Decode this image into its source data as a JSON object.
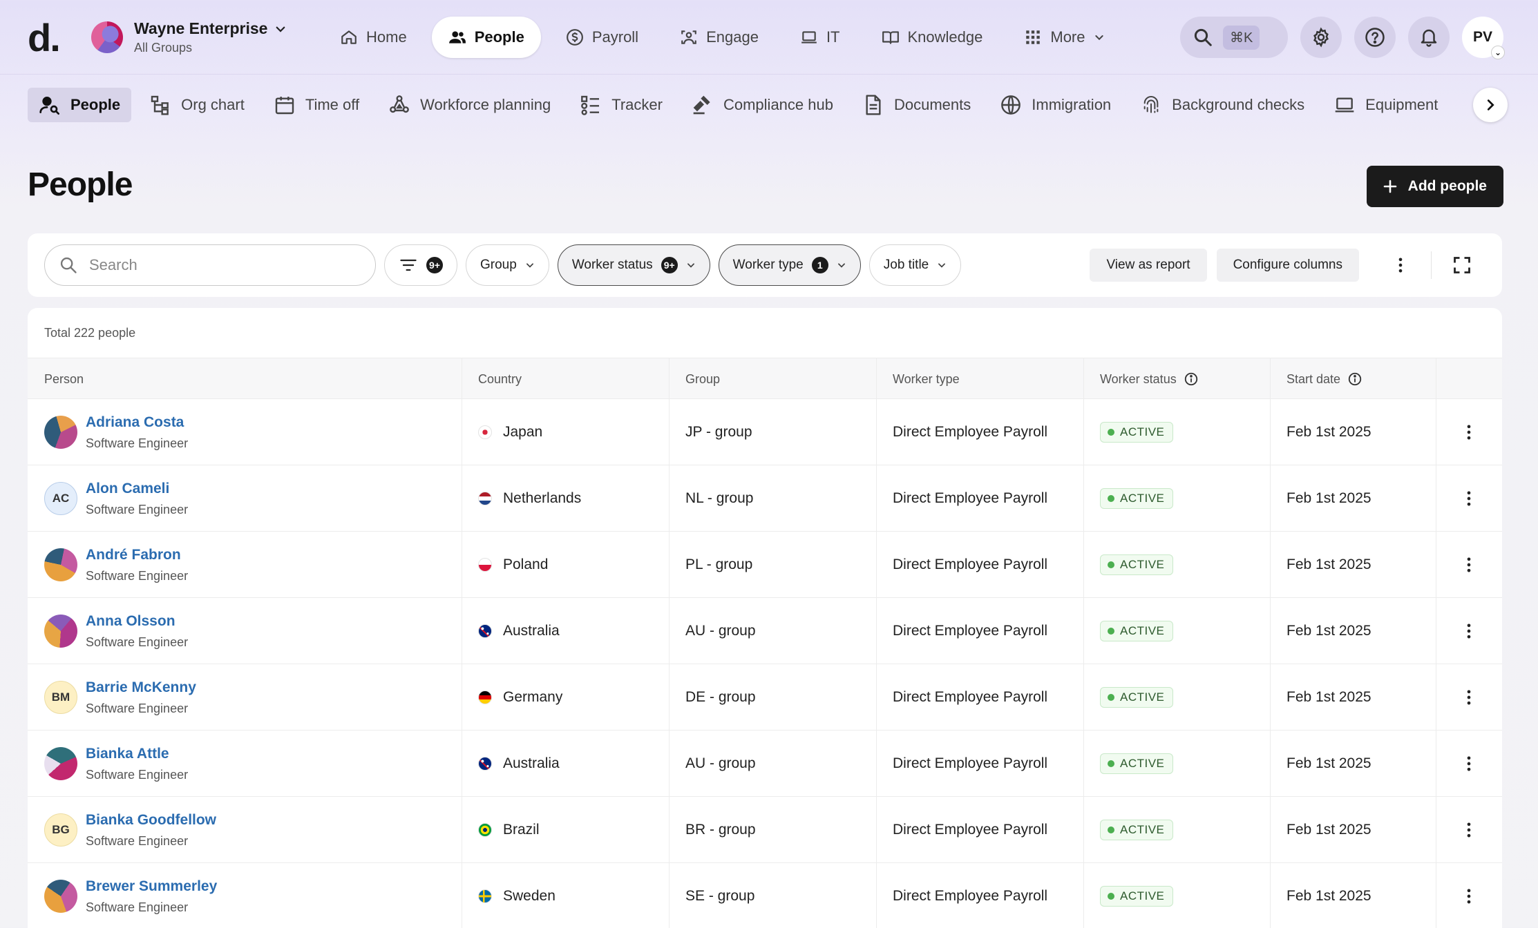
{
  "app": {
    "logo": "d."
  },
  "org": {
    "name": "Wayne Enterprise",
    "sub": "All Groups"
  },
  "topnav": [
    {
      "label": "Home",
      "icon": "home-icon"
    },
    {
      "label": "People",
      "icon": "people-icon",
      "active": true
    },
    {
      "label": "Payroll",
      "icon": "dollar-icon"
    },
    {
      "label": "Engage",
      "icon": "engage-icon"
    },
    {
      "label": "IT",
      "icon": "laptop-icon"
    },
    {
      "label": "Knowledge",
      "icon": "book-icon"
    },
    {
      "label": "More",
      "icon": "grid-icon"
    }
  ],
  "topright": {
    "shortcut": "⌘K",
    "user_initials": "PV"
  },
  "subnav": [
    {
      "label": "People",
      "icon": "person-search-icon",
      "active": true
    },
    {
      "label": "Org chart",
      "icon": "org-chart-icon"
    },
    {
      "label": "Time off",
      "icon": "calendar-icon"
    },
    {
      "label": "Workforce planning",
      "icon": "workforce-icon"
    },
    {
      "label": "Tracker",
      "icon": "tracker-icon"
    },
    {
      "label": "Compliance hub",
      "icon": "gavel-icon"
    },
    {
      "label": "Documents",
      "icon": "document-icon"
    },
    {
      "label": "Immigration",
      "icon": "globe-icon"
    },
    {
      "label": "Background checks",
      "icon": "fingerprint-icon"
    },
    {
      "label": "Equipment",
      "icon": "laptop-icon"
    }
  ],
  "page": {
    "title": "People",
    "add_label": "Add people"
  },
  "filters": {
    "search_placeholder": "Search",
    "filter_count": "9+",
    "chips": [
      {
        "label": "Group",
        "badge": "",
        "selected": false
      },
      {
        "label": "Worker status",
        "badge": "9+",
        "selected": true
      },
      {
        "label": "Worker type",
        "badge": "1",
        "selected": true
      },
      {
        "label": "Job title",
        "badge": "",
        "selected": false
      }
    ],
    "view_report": "View as report",
    "configure": "Configure columns"
  },
  "table": {
    "total": "Total 222 people",
    "columns": [
      "Person",
      "Country",
      "Group",
      "Worker type",
      "Worker status",
      "Start date"
    ],
    "rows": [
      {
        "name": "Adriana Costa",
        "title": "Software Engineer",
        "initials": "",
        "avatar": "photo-1",
        "country": "Japan",
        "flag": "jp",
        "group": "JP - group",
        "type": "Direct Employee Payroll",
        "status": "ACTIVE",
        "start": "Feb 1st 2025"
      },
      {
        "name": "Alon Cameli",
        "title": "Software Engineer",
        "initials": "AC",
        "avatar": "init-blue",
        "country": "Netherlands",
        "flag": "nl",
        "group": "NL - group",
        "type": "Direct Employee Payroll",
        "status": "ACTIVE",
        "start": "Feb 1st 2025"
      },
      {
        "name": "André Fabron",
        "title": "Software Engineer",
        "initials": "",
        "avatar": "photo-2",
        "country": "Poland",
        "flag": "pl",
        "group": "PL - group",
        "type": "Direct Employee Payroll",
        "status": "ACTIVE",
        "start": "Feb 1st 2025"
      },
      {
        "name": "Anna Olsson",
        "title": "Software Engineer",
        "initials": "",
        "avatar": "photo-3",
        "country": "Australia",
        "flag": "au",
        "group": "AU - group",
        "type": "Direct Employee Payroll",
        "status": "ACTIVE",
        "start": "Feb 1st 2025"
      },
      {
        "name": "Barrie McKenny",
        "title": "Software Engineer",
        "initials": "BM",
        "avatar": "init-yellow",
        "country": "Germany",
        "flag": "de",
        "group": "DE - group",
        "type": "Direct Employee Payroll",
        "status": "ACTIVE",
        "start": "Feb 1st 2025"
      },
      {
        "name": "Bianka Attle",
        "title": "Software Engineer",
        "initials": "",
        "avatar": "photo-4",
        "country": "Australia",
        "flag": "au",
        "group": "AU - group",
        "type": "Direct Employee Payroll",
        "status": "ACTIVE",
        "start": "Feb 1st 2025"
      },
      {
        "name": "Bianka Goodfellow",
        "title": "Software Engineer",
        "initials": "BG",
        "avatar": "init-yellow",
        "country": "Brazil",
        "flag": "br",
        "group": "BR - group",
        "type": "Direct Employee Payroll",
        "status": "ACTIVE",
        "start": "Feb 1st 2025"
      },
      {
        "name": "Brewer Summerley",
        "title": "Software Engineer",
        "initials": "",
        "avatar": "photo-5",
        "country": "Sweden",
        "flag": "se",
        "group": "SE - group",
        "type": "Direct Employee Payroll",
        "status": "ACTIVE",
        "start": "Feb 1st 2025"
      }
    ]
  }
}
